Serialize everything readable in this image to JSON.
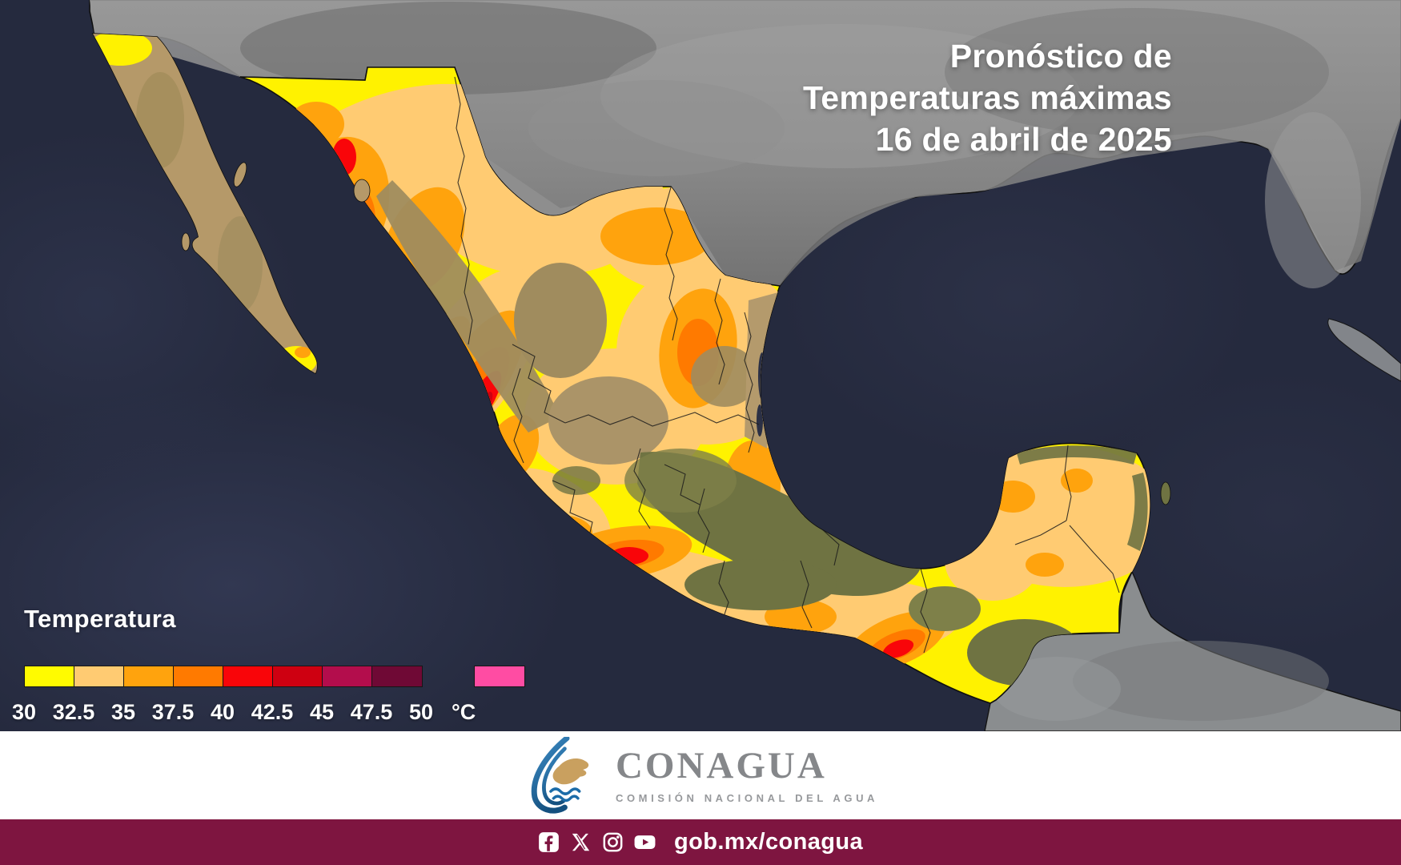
{
  "title": {
    "line1": "Pronóstico de",
    "line2": "Temperaturas máximas",
    "line3": "16 de abril de 2025"
  },
  "legend": {
    "title": "Temperatura",
    "unit": "°C",
    "labels": [
      "30",
      "32.5",
      "35",
      "37.5",
      "40",
      "42.5",
      "45",
      "47.5",
      "50"
    ],
    "colors": [
      "#FFFB00",
      "#FFCB72",
      "#FFA30D",
      "#FF7A00",
      "#F90509",
      "#CE0011",
      "#B30D4C",
      "#6F0935"
    ],
    "overflow_color": "#FF4CA3"
  },
  "map": {
    "description": "Mapa de México con pronóstico de temperaturas máximas",
    "ocean_color": "#252a3e",
    "us_land_color": "#8e8e8e",
    "central_america_color": "#8a8d8f",
    "cuba_color": "#82858a",
    "terrain_tan": "#b59969",
    "terrain_olive": "#6f7342",
    "border_color": "#111111"
  },
  "footer": {
    "logo_name": "CONAGUA",
    "logo_subtitle": "COMISIÓN NACIONAL DEL AGUA",
    "logo_blue": "#1c6ca8",
    "logo_gold": "#c9a05f",
    "logo_gray": "#85878a"
  },
  "bottom_bar": {
    "url": "gob.mx/conagua",
    "background": "#7e1540",
    "icons": [
      "facebook",
      "x-twitter",
      "instagram",
      "youtube"
    ]
  }
}
